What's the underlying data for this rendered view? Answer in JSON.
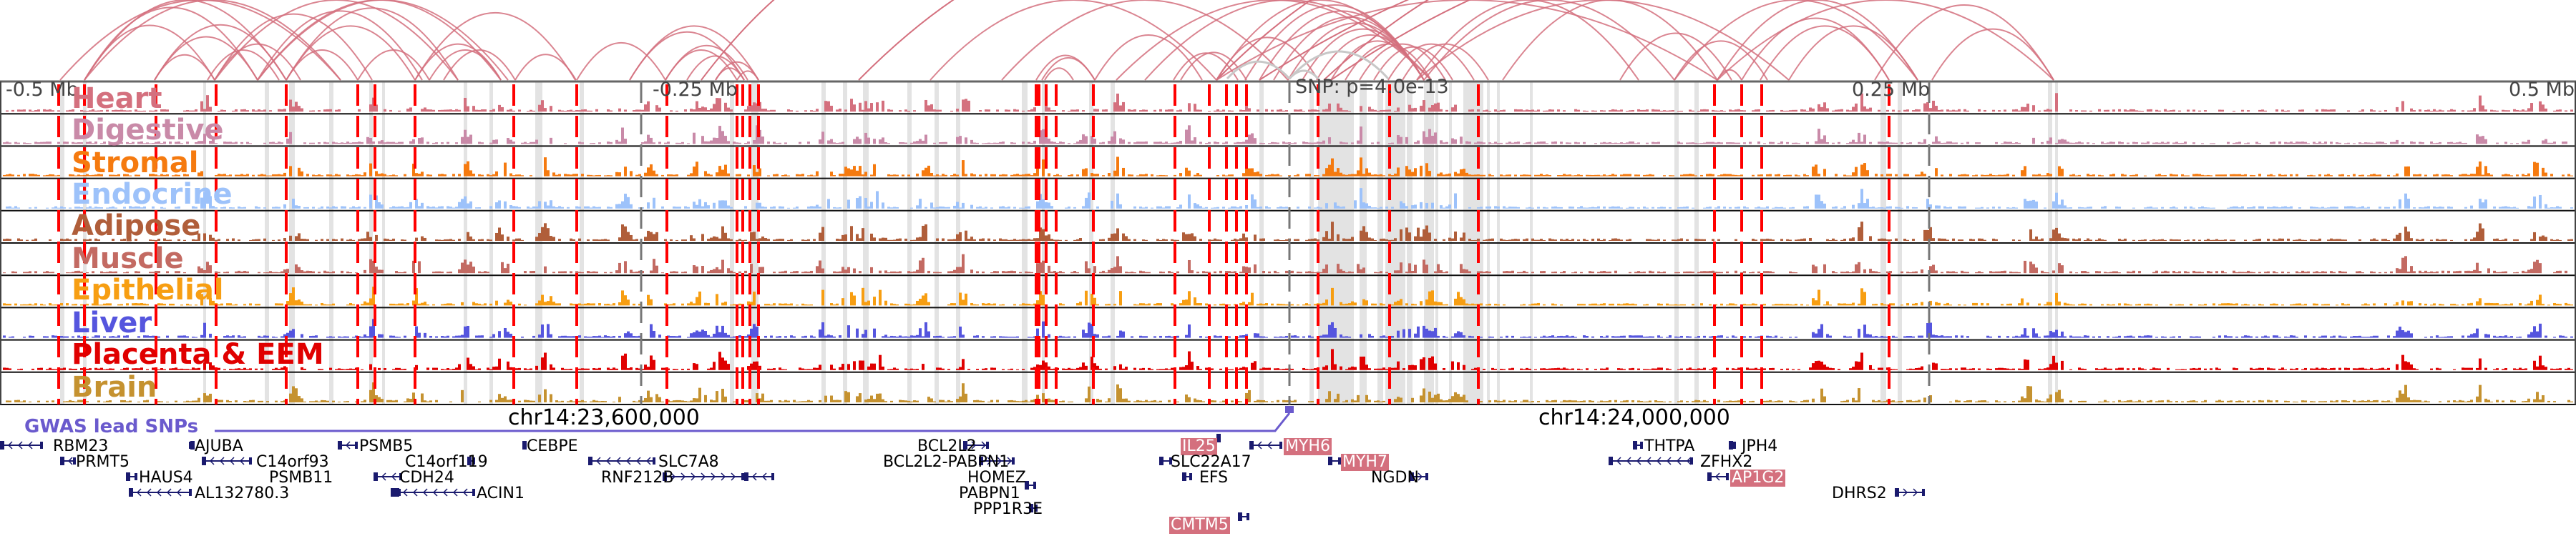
{
  "scale": {
    "labels": [
      "-0.5 Mb",
      "-0.25 Mb",
      "0.25 Mb",
      "0.5 Mb"
    ],
    "snp_annotation": "SNP: p=4.0e-13"
  },
  "coordinates": [
    "chr14:23,600,000",
    "chr14:24,000,000"
  ],
  "gwas": {
    "label": "GWAS lead SNPs",
    "color": "#6a5acd"
  },
  "tracks": [
    {
      "name": "Heart",
      "color": "#d4707e"
    },
    {
      "name": "Digestive",
      "color": "#c98aa8"
    },
    {
      "name": "Stromal",
      "color": "#f57a0f"
    },
    {
      "name": "Endocrine",
      "color": "#9dc2fa"
    },
    {
      "name": "Adipose",
      "color": "#b05e3a"
    },
    {
      "name": "Muscle",
      "color": "#c36a62"
    },
    {
      "name": "Epithelial",
      "color": "#f79e12"
    },
    {
      "name": "Liver",
      "color": "#5555de"
    },
    {
      "name": "Placenta & EEM",
      "color": "#e00000"
    },
    {
      "name": "Brain",
      "color": "#c59230"
    }
  ],
  "genes": [
    {
      "name": "RBM23",
      "strand": "-",
      "highlight": false
    },
    {
      "name": "PRMT5",
      "strand": "-",
      "highlight": false
    },
    {
      "name": "HAUS4",
      "strand": "-",
      "highlight": false
    },
    {
      "name": "AL132780.3",
      "strand": "-",
      "highlight": false
    },
    {
      "name": "AJUBA",
      "strand": "-",
      "highlight": false
    },
    {
      "name": "C14orf93",
      "strand": "-",
      "highlight": false
    },
    {
      "name": "PSMB11",
      "strand": "+",
      "highlight": false
    },
    {
      "name": "PSMB5",
      "strand": "-",
      "highlight": false
    },
    {
      "name": "C14orf119",
      "strand": "+",
      "highlight": false
    },
    {
      "name": "CDH24",
      "strand": "-",
      "highlight": false
    },
    {
      "name": "ACIN1",
      "strand": "-",
      "highlight": false
    },
    {
      "name": "CEBPE",
      "strand": "-",
      "highlight": false
    },
    {
      "name": "SLC7A8",
      "strand": "-",
      "highlight": false
    },
    {
      "name": "RNF212B",
      "strand": "+",
      "highlight": false
    },
    {
      "name": "BCL2L2",
      "strand": "+",
      "highlight": false
    },
    {
      "name": "BCL2L2-PABPN1",
      "strand": "+",
      "highlight": false
    },
    {
      "name": "HOMEZ",
      "strand": "-",
      "highlight": false
    },
    {
      "name": "PABPN1",
      "strand": "+",
      "highlight": false
    },
    {
      "name": "PPP1R3E",
      "strand": "-",
      "highlight": false
    },
    {
      "name": "IL25",
      "strand": "+",
      "highlight": true
    },
    {
      "name": "SLC22A17",
      "strand": "-",
      "highlight": false
    },
    {
      "name": "EFS",
      "strand": "-",
      "highlight": false
    },
    {
      "name": "CMTM5",
      "strand": "+",
      "highlight": true
    },
    {
      "name": "MYH6",
      "strand": "-",
      "highlight": true
    },
    {
      "name": "MYH7",
      "strand": "-",
      "highlight": true
    },
    {
      "name": "NGDN",
      "strand": "+",
      "highlight": false
    },
    {
      "name": "THTPA",
      "strand": "+",
      "highlight": false
    },
    {
      "name": "ZFHX2",
      "strand": "-",
      "highlight": false
    },
    {
      "name": "AP1G2",
      "strand": "-",
      "highlight": true
    },
    {
      "name": "JPH4",
      "strand": "-",
      "highlight": false
    },
    {
      "name": "DHRS2",
      "strand": "+",
      "highlight": false
    }
  ],
  "colors": {
    "arc": "#d4707e",
    "arc_gray": "#c8c8c8",
    "candidate_line": "#ff0000",
    "shade": "#e3e3e3",
    "gene": "#1a1a6e",
    "axis": "#666666"
  }
}
